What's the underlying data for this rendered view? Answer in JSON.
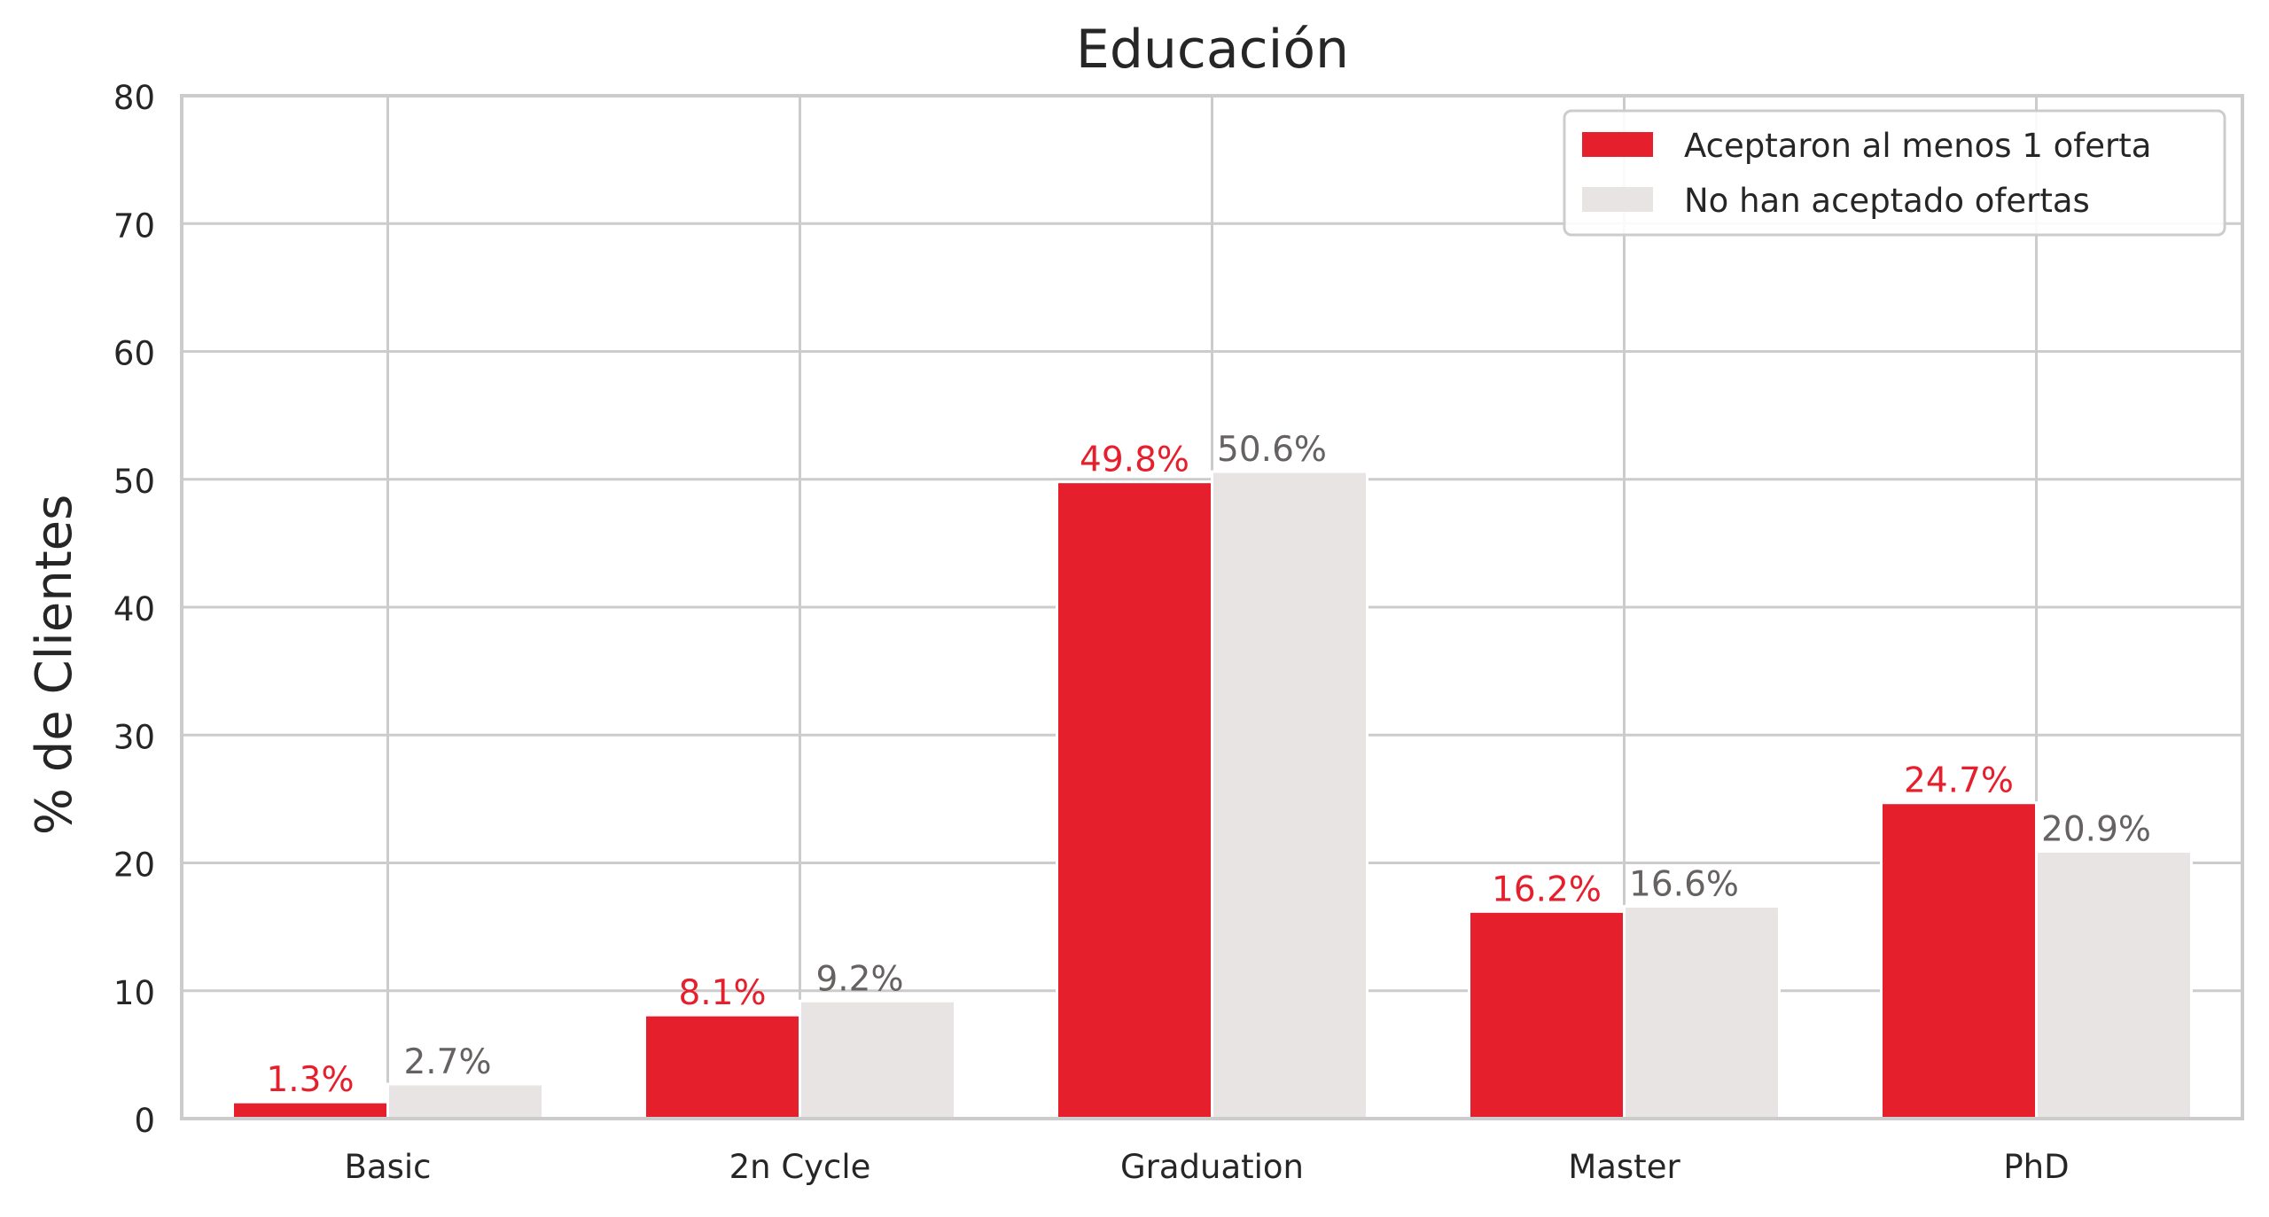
{
  "chart_data": {
    "type": "bar",
    "title": "Educación",
    "xlabel": "",
    "ylabel": "% de Clientes",
    "ylim": [
      0,
      80
    ],
    "yticks": [
      0,
      10,
      20,
      30,
      40,
      50,
      60,
      70,
      80
    ],
    "grid": true,
    "legend_position": "top-right",
    "categories": [
      "Basic",
      "2n Cycle",
      "Graduation",
      "Master",
      "PhD"
    ],
    "series": [
      {
        "name": "Aceptaron al menos 1 oferta",
        "color": "#e61f2d",
        "label_color": "#e61f2d",
        "values": [
          1.3,
          8.1,
          49.8,
          16.2,
          24.7
        ],
        "labels": [
          "1.3%",
          "8.1%",
          "49.8%",
          "16.2%",
          "24.7%"
        ]
      },
      {
        "name": "No han aceptado ofertas",
        "color": "#e7e4e3",
        "label_color": "#666262",
        "values": [
          2.7,
          9.2,
          50.6,
          16.6,
          20.9
        ],
        "labels": [
          "2.7%",
          "9.2%",
          "50.6%",
          "16.6%",
          "20.9%"
        ]
      }
    ]
  }
}
